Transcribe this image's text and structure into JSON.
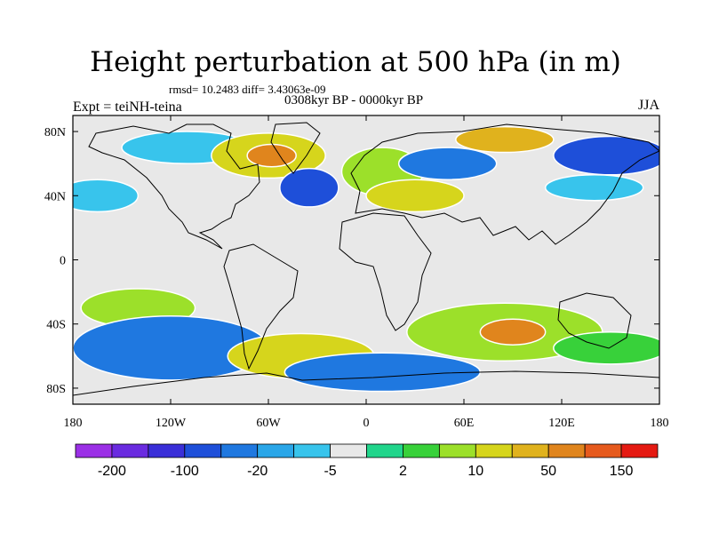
{
  "header": {
    "title": "Height perturbation at 500 hPa (in m)",
    "stats": "rmsd= 10.2483 diff= 3.43063e-09",
    "period": "0308kyr BP - 0000kyr BP",
    "experiment": "Expt = teiNH-teina",
    "season": "JJA"
  },
  "axes": {
    "x_ticks": [
      {
        "label": "180",
        "lon": -180
      },
      {
        "label": "120W",
        "lon": -120
      },
      {
        "label": "60W",
        "lon": -60
      },
      {
        "label": "0",
        "lon": 0
      },
      {
        "label": "60E",
        "lon": 60
      },
      {
        "label": "120E",
        "lon": 120
      },
      {
        "label": "180",
        "lon": 180
      }
    ],
    "y_ticks": [
      {
        "label": "80N",
        "lat": 80
      },
      {
        "label": "40N",
        "lat": 40
      },
      {
        "label": "0",
        "lat": 0
      },
      {
        "label": "40S",
        "lat": -40
      },
      {
        "label": "80S",
        "lat": -80
      }
    ]
  },
  "colorbar": {
    "colors": [
      "#9b30e6",
      "#6a2be0",
      "#3a2fd8",
      "#1e4fd9",
      "#1f78e0",
      "#2aa6e8",
      "#38c4ec",
      "#e8e8e8",
      "#21d58b",
      "#38d13a",
      "#9ce02a",
      "#d6d51c",
      "#e0b21d",
      "#e0851d",
      "#e65a1d",
      "#e51a12"
    ],
    "labels": [
      {
        "text": "-200",
        "index": 1
      },
      {
        "text": "-100",
        "index": 3
      },
      {
        "text": "-20",
        "index": 5
      },
      {
        "text": "-5",
        "index": 7
      },
      {
        "text": "2",
        "index": 9
      },
      {
        "text": "10",
        "index": 11
      },
      {
        "text": "50",
        "index": 13
      },
      {
        "text": "150",
        "index": 15
      }
    ]
  },
  "field": {
    "background_color": "#e8e8e8",
    "features": [
      {
        "lon": -110,
        "lat": 70,
        "rx": 40,
        "ry": 10,
        "color": "#38c4ec"
      },
      {
        "lon": -60,
        "lat": 65,
        "rx": 35,
        "ry": 14,
        "color": "#d6d51c"
      },
      {
        "lon": -58,
        "lat": 65,
        "rx": 15,
        "ry": 7,
        "color": "#e0851d"
      },
      {
        "lon": -35,
        "lat": 45,
        "rx": 18,
        "ry": 12,
        "color": "#1e4fd9"
      },
      {
        "lon": 10,
        "lat": 55,
        "rx": 25,
        "ry": 15,
        "color": "#9ce02a"
      },
      {
        "lon": 30,
        "lat": 40,
        "rx": 30,
        "ry": 10,
        "color": "#d6d51c"
      },
      {
        "lon": 50,
        "lat": 60,
        "rx": 30,
        "ry": 10,
        "color": "#1f78e0"
      },
      {
        "lon": 85,
        "lat": 75,
        "rx": 30,
        "ry": 8,
        "color": "#e0b21d"
      },
      {
        "lon": 150,
        "lat": 65,
        "rx": 35,
        "ry": 12,
        "color": "#1e4fd9"
      },
      {
        "lon": 140,
        "lat": 45,
        "rx": 30,
        "ry": 8,
        "color": "#38c4ec"
      },
      {
        "lon": -165,
        "lat": 40,
        "rx": 25,
        "ry": 10,
        "color": "#38c4ec"
      },
      {
        "lon": -140,
        "lat": -30,
        "rx": 35,
        "ry": 12,
        "color": "#9ce02a"
      },
      {
        "lon": -120,
        "lat": -55,
        "rx": 60,
        "ry": 20,
        "color": "#1f78e0"
      },
      {
        "lon": -40,
        "lat": -60,
        "rx": 45,
        "ry": 14,
        "color": "#d6d51c"
      },
      {
        "lon": 85,
        "lat": -45,
        "rx": 60,
        "ry": 18,
        "color": "#9ce02a"
      },
      {
        "lon": 90,
        "lat": -45,
        "rx": 20,
        "ry": 8,
        "color": "#e0851d"
      },
      {
        "lon": 150,
        "lat": -55,
        "rx": 35,
        "ry": 10,
        "color": "#38d13a"
      },
      {
        "lon": 10,
        "lat": -70,
        "rx": 60,
        "ry": 12,
        "color": "#1f78e0"
      }
    ]
  }
}
